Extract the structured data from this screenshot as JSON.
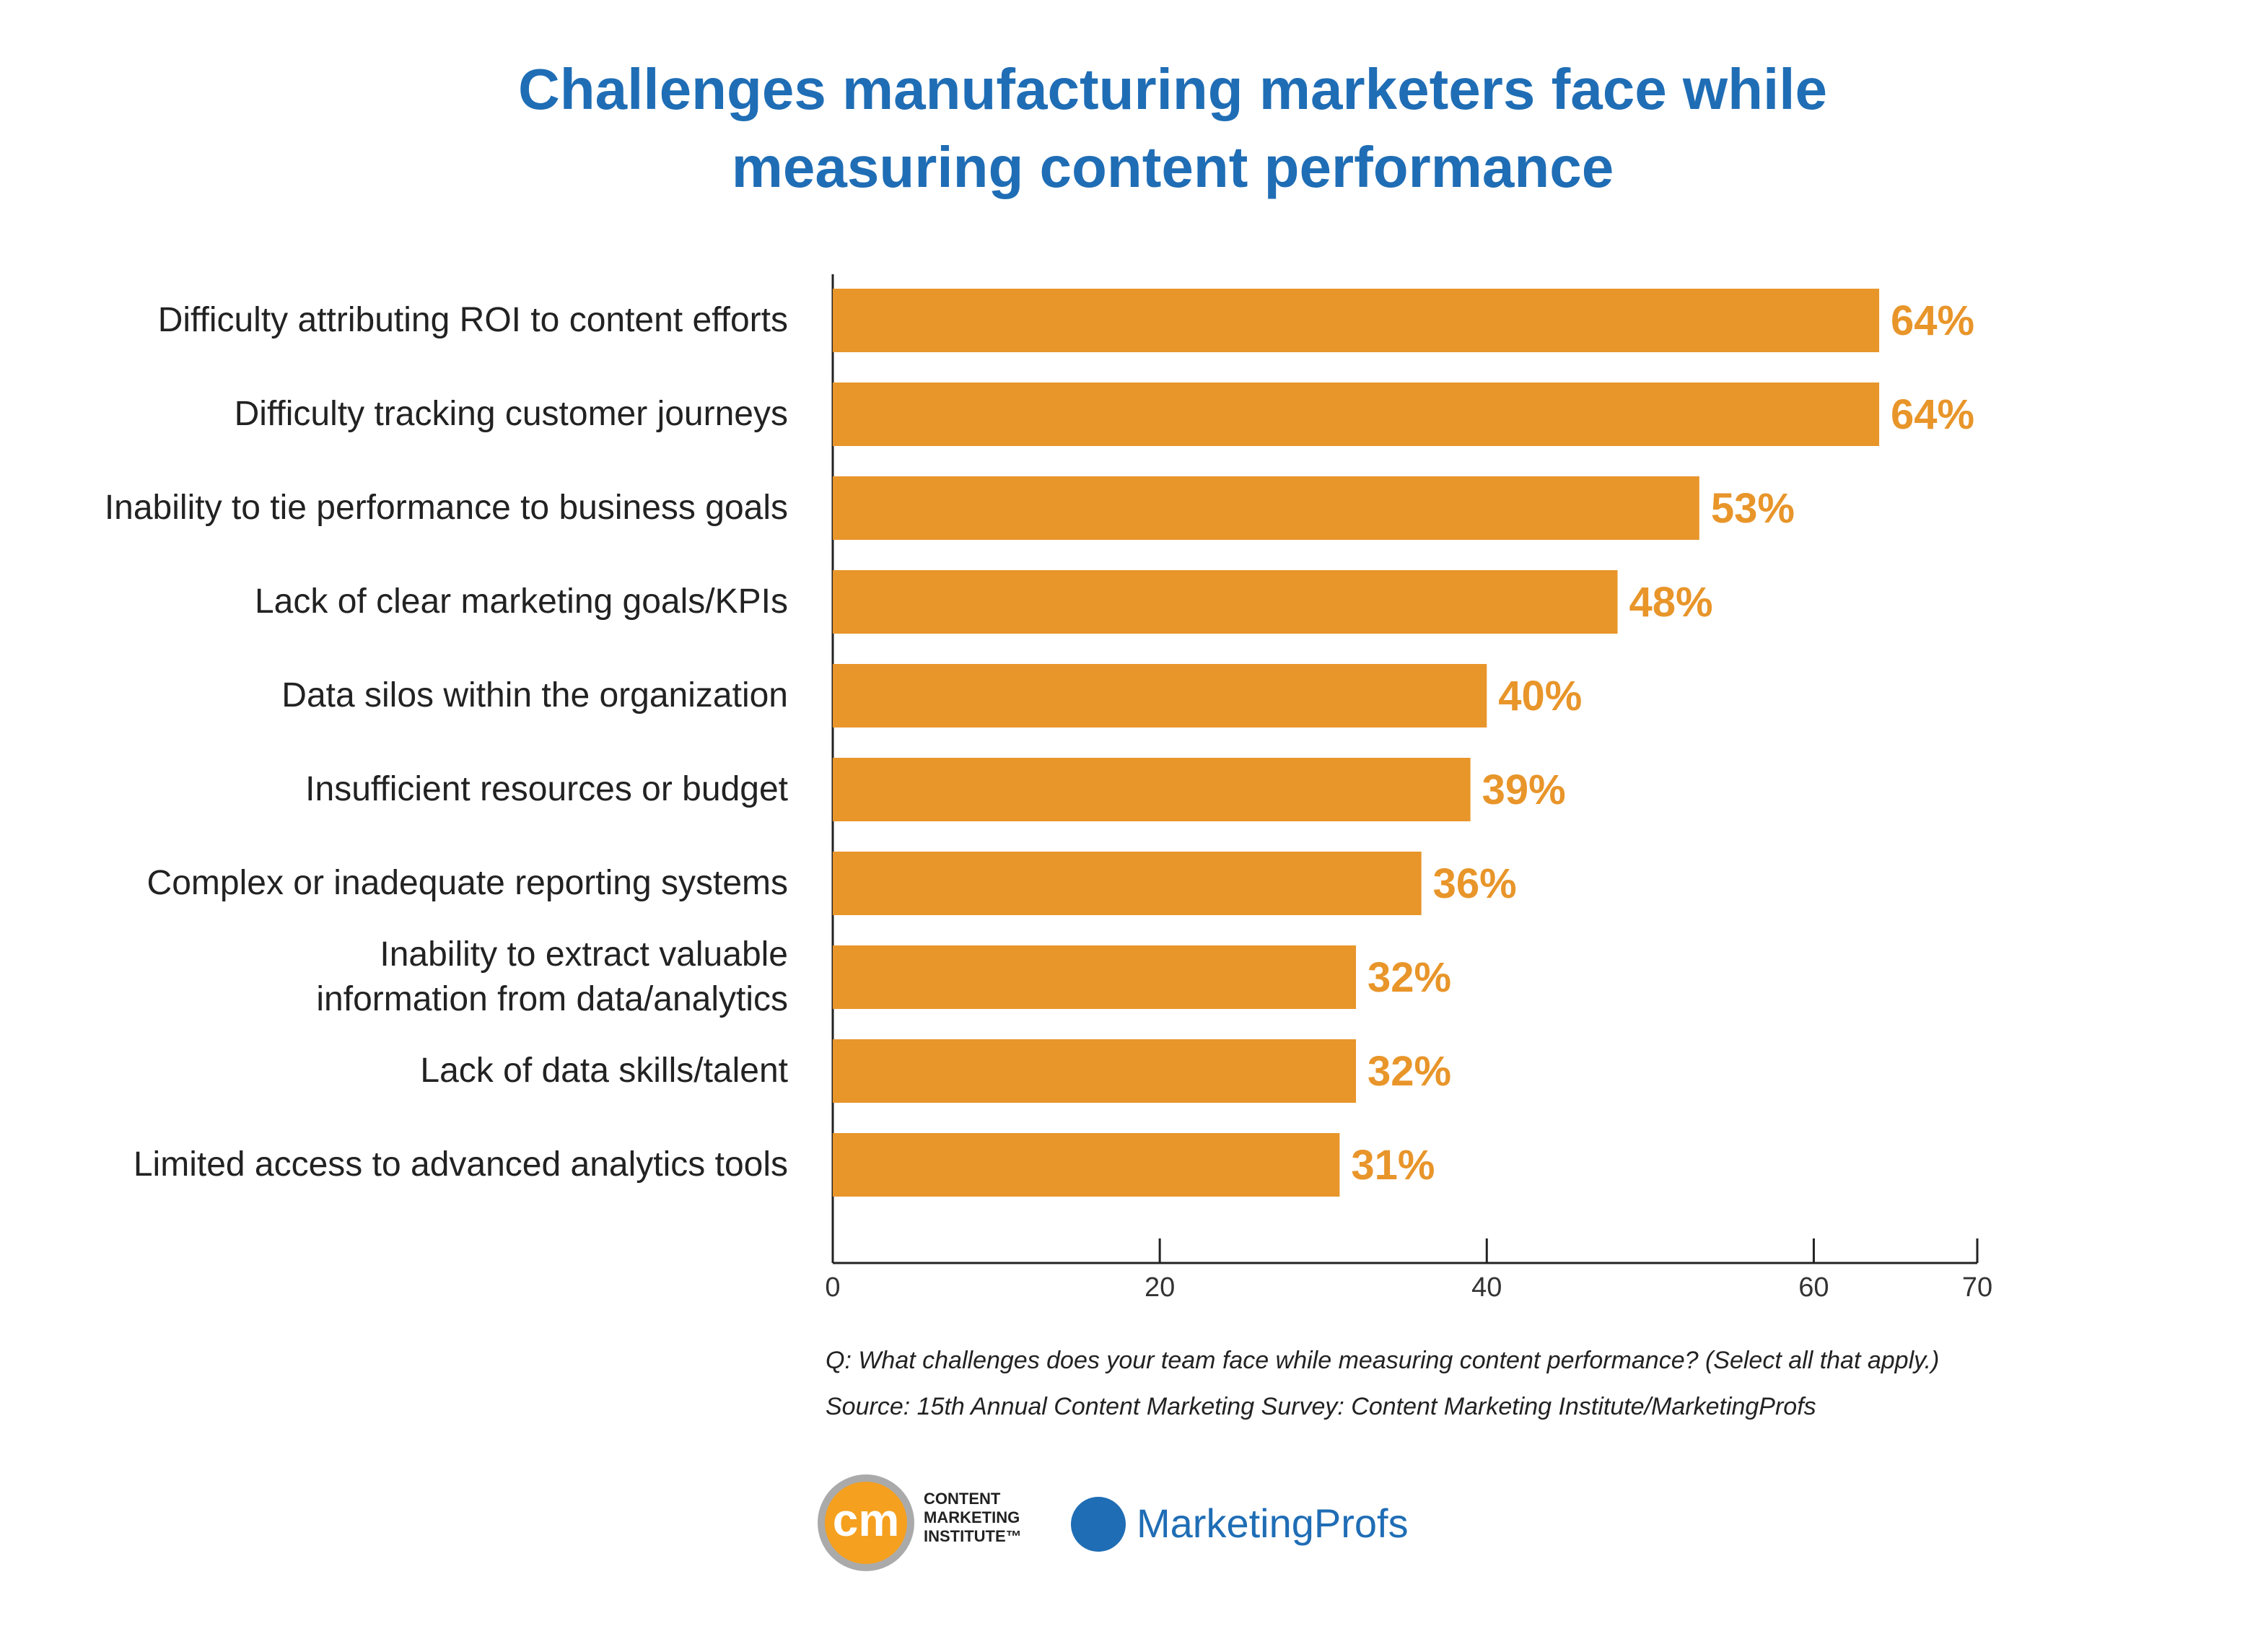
{
  "chart_data": {
    "type": "hbar",
    "title": "Challenges manufacturing marketers face while measuring content performance",
    "categories": [
      "Difficulty attributing ROI to content efforts",
      "Difficulty tracking customer journeys",
      "Inability to tie performance to business goals",
      "Lack of clear marketing goals/KPIs",
      "Data silos within the organization",
      "Insufficient resources or budget",
      "Complex or inadequate reporting systems",
      "Inability to extract valuable\ninformation from data/analytics",
      "Lack of data skills/talent",
      "Limited access to advanced analytics tools"
    ],
    "values": [
      64,
      64,
      53,
      48,
      40,
      39,
      36,
      32,
      32,
      31
    ],
    "value_labels": [
      "64%",
      "64%",
      "53%",
      "48%",
      "40%",
      "39%",
      "36%",
      "32%",
      "32%",
      "31%"
    ],
    "color": "#e8952a",
    "xlim": [
      0,
      70
    ],
    "xticks": [
      0,
      20,
      40,
      60,
      70
    ],
    "question": "Q: What challenges does your team face while measuring content performance? (Select all that apply.)",
    "source": "Source: 15th Annual Content Marketing Survey: Content Marketing Institute/MarketingProfs"
  },
  "logos": {
    "cmi_mark": "cm",
    "cmi_text": "CONTENT\nMARKETING\nINSTITUTE™",
    "mp": "MarketingProfs"
  }
}
